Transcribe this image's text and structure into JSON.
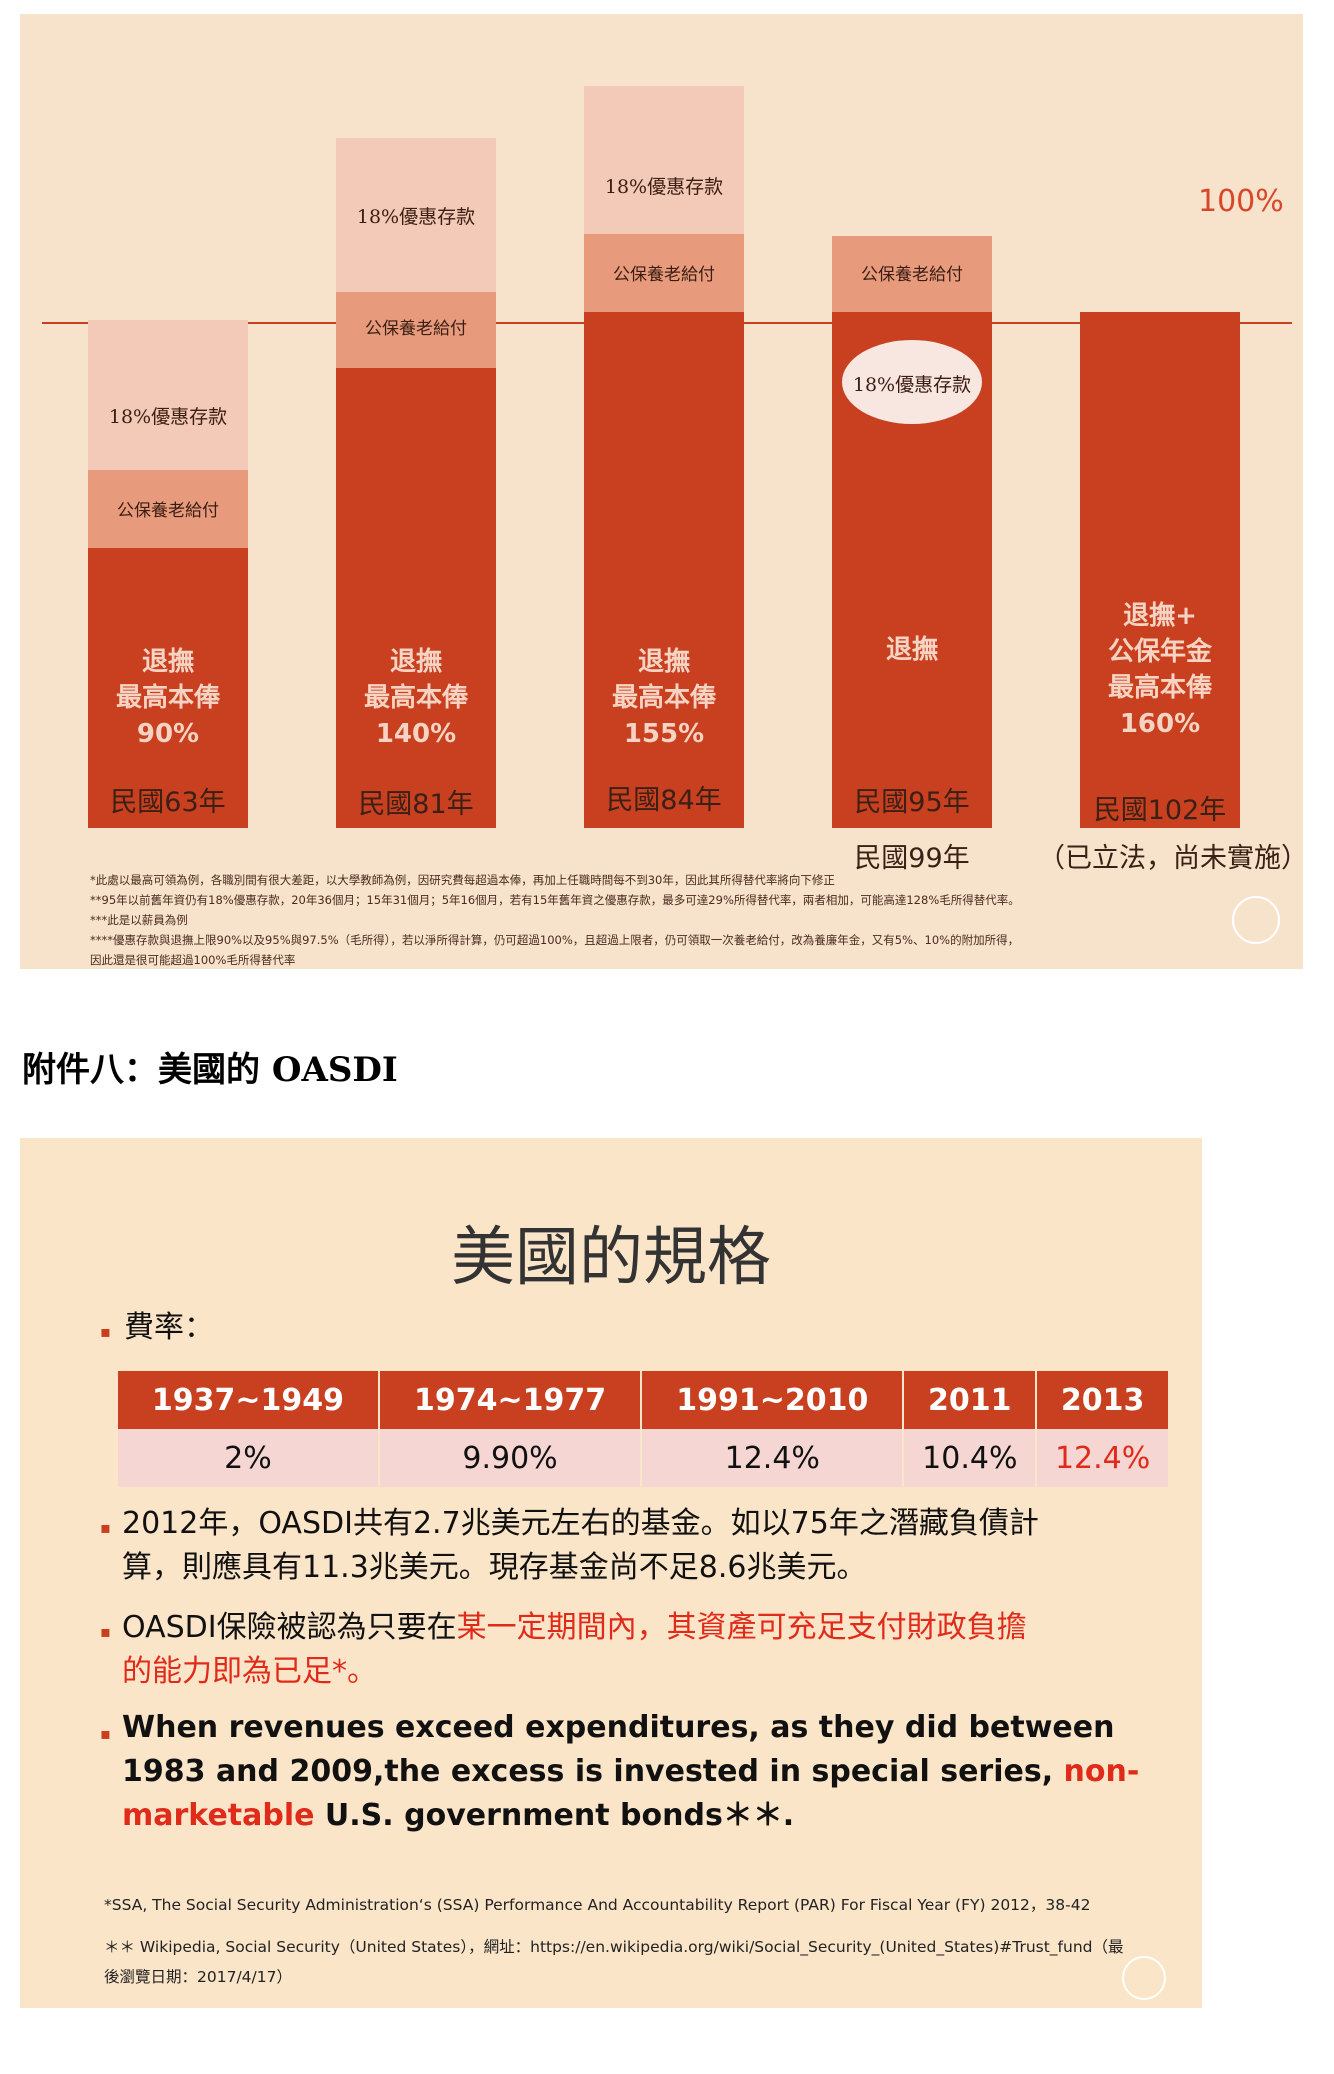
{
  "chart1": {
    "ref_label": "100%",
    "bars": [
      {
        "segments": [
          {
            "kind": "deposit",
            "label": "18%優惠存款"
          },
          {
            "kind": "pension",
            "label": "公保養老給付"
          }
        ],
        "main": "退撫\n最高本俸\n90%",
        "year": "民國63年"
      },
      {
        "segments": [
          {
            "kind": "deposit",
            "label": "18%優惠存款"
          },
          {
            "kind": "pension",
            "label": "公保養老給付"
          }
        ],
        "main": "退撫\n最高本俸\n140%",
        "year": "民國81年"
      },
      {
        "segments": [
          {
            "kind": "deposit",
            "label": "18%優惠存款"
          },
          {
            "kind": "pension",
            "label": "公保養老給付"
          }
        ],
        "main": "退撫\n最高本俸\n155%",
        "year": "民國84年"
      },
      {
        "segments": [
          {
            "kind": "pension",
            "label": "公保養老給付"
          },
          {
            "kind": "ellipse",
            "label": "18%優惠存款"
          }
        ],
        "main": "退撫",
        "year": "民國95年",
        "year2": "民國99年"
      },
      {
        "segments": [],
        "main": "退撫+\n公保年金\n最高本俸\n160%",
        "year": "民國102年",
        "year2": "（已立法，尚未實施）"
      }
    ],
    "notes": [
      "*此處以最高可領為例，各職別間有很大差距，以大學教師為例，因研究費每超過本俸，再加上任職時間每不到30年，因此其所得替代率將向下修正",
      "**95年以前舊年資仍有18%優惠存款，20年36個月；15年31個月；5年16個月，若有15年舊年資之優惠存款，最多可達29%所得替代率，兩者相加，可能高達128%毛所得替代率。",
      "***此是以薪員為例",
      "****優惠存款與退撫上限90%以及95%與97.5%（毛所得），若以淨所得計算，仍可超過100%，且超過上限者，仍可領取一次養老給付，改為養廉年金，又有5%、10%的附加所得，",
      "因此還是很可能超過100%毛所得替代率"
    ]
  },
  "heading": "附件八：美國的 OASDI",
  "slide2": {
    "title": "美國的規格",
    "rate_label": "費率：",
    "table": {
      "headers": [
        "1937~1949",
        "1974~1977",
        "1991~2010",
        "2011",
        "2013"
      ],
      "values": [
        "2%",
        "9.90%",
        "12.4%",
        "10.4%",
        "12.4%"
      ]
    },
    "bullet2": {
      "line1": "2012年，OASDI共有2.7兆美元左右的基金。如以75年之潛藏負債計",
      "line2": "算，則應具有11.3兆美元。現存基金尚不足8.6兆美元。"
    },
    "bullet3": {
      "part1": "OASDI保險被認為只要在",
      "part2": "某一定期間內，其資產可充足支付財政負擔",
      "part3": "的能力即為已足*",
      "part4": "。"
    },
    "bullet4": {
      "line1": "When revenues exceed expenditures, as they did between",
      "line2a": "1983 and 2009,the excess is invested in special series, ",
      "line2b": "non-",
      "line3a": "marketable",
      "line3b": " U.S. government bonds＊＊."
    },
    "footnote1": "*SSA, The Social Security Administration‘s (SSA) Performance And Accountability Report (PAR) For Fiscal Year (FY) 2012，38-42",
    "footnote2a": "＊＊ Wikipedia, Social Security（United States），網址：https://en.wikipedia.org/wiki/Social_Security_(United_States)#Trust_fund（最",
    "footnote2b": "後瀏覽日期：2017/4/17）"
  }
}
